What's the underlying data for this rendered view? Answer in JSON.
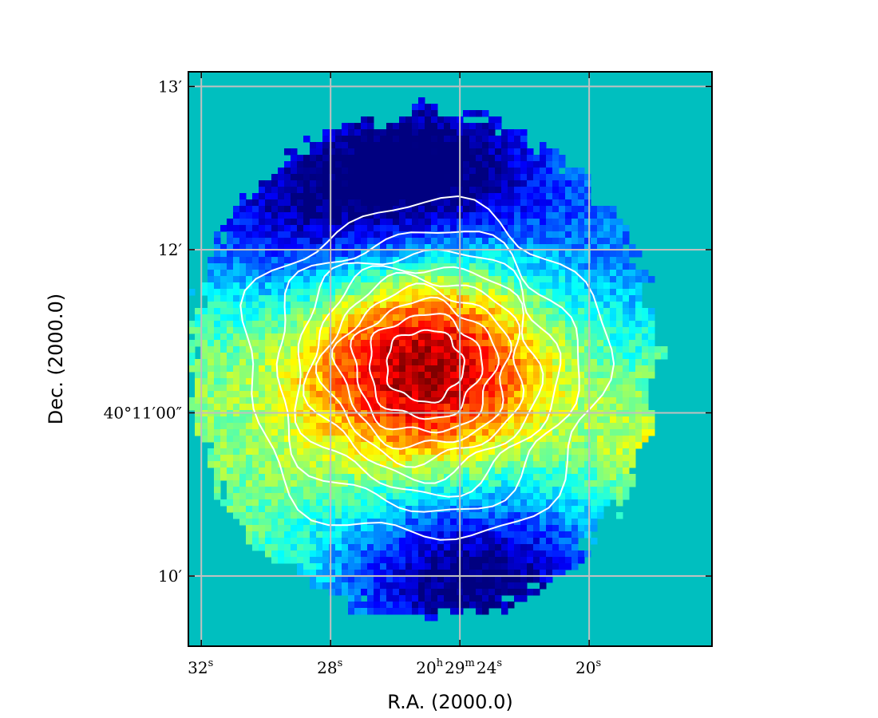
{
  "chart_data": {
    "type": "heatmap",
    "title": "",
    "xlabel": "R.A. (2000.0)",
    "ylabel": "Dec. (2000.0)",
    "grid": true,
    "grid_color": "#c0c0c0",
    "background_color": "#00bfbf",
    "colormap": "jet",
    "contour_color": "#ffffff",
    "contour_levels": 9,
    "xaxis": {
      "unit": "seconds of R.A. offset from 20h29m24s",
      "lim": [
        32.4,
        16.2
      ],
      "ticks": [
        {
          "value": 32,
          "main": "32",
          "sup": "s"
        },
        {
          "value": 28,
          "main": "28",
          "sup": "s"
        },
        {
          "value": 24,
          "parts": [
            [
              "20",
              "h"
            ],
            [
              "29",
              "m"
            ],
            [
              "24",
              "s"
            ]
          ]
        },
        {
          "value": 20,
          "main": "20",
          "sup": "s"
        }
      ]
    },
    "yaxis": {
      "unit": "arcminutes of Dec. relative to 40°00'",
      "lim": [
        9.57,
        13.09
      ],
      "ticks": [
        {
          "value": 13,
          "label": "13′"
        },
        {
          "value": 12,
          "label": "12′"
        },
        {
          "value": 11,
          "label": "40°11′00″"
        },
        {
          "value": 10,
          "label": "10′"
        }
      ]
    },
    "emission": {
      "peak": {
        "ra_s": 25.1,
        "dec_arcmin": 11.3
      },
      "peak_level": 1.0,
      "core_width_s": 2.6,
      "core_height_arcmin": 0.45,
      "outer_radius_s": 7.2,
      "outer_radius_arcmin": 1.55,
      "low_regions": [
        {
          "ra_s": 24.8,
          "dec_arcmin": 12.55,
          "depth": 0.9
        },
        {
          "ra_s": 23.6,
          "dec_arcmin": 9.97,
          "depth": 0.95
        },
        {
          "ra_s": 29.6,
          "dec_arcmin": 12.2,
          "depth": 0.6
        },
        {
          "ra_s": 18.3,
          "dec_arcmin": 11.95,
          "depth": 0.4
        }
      ],
      "secondary": {
        "ra_s": 17.8,
        "dec_arcmin": 10.75,
        "level": 0.62
      }
    }
  }
}
